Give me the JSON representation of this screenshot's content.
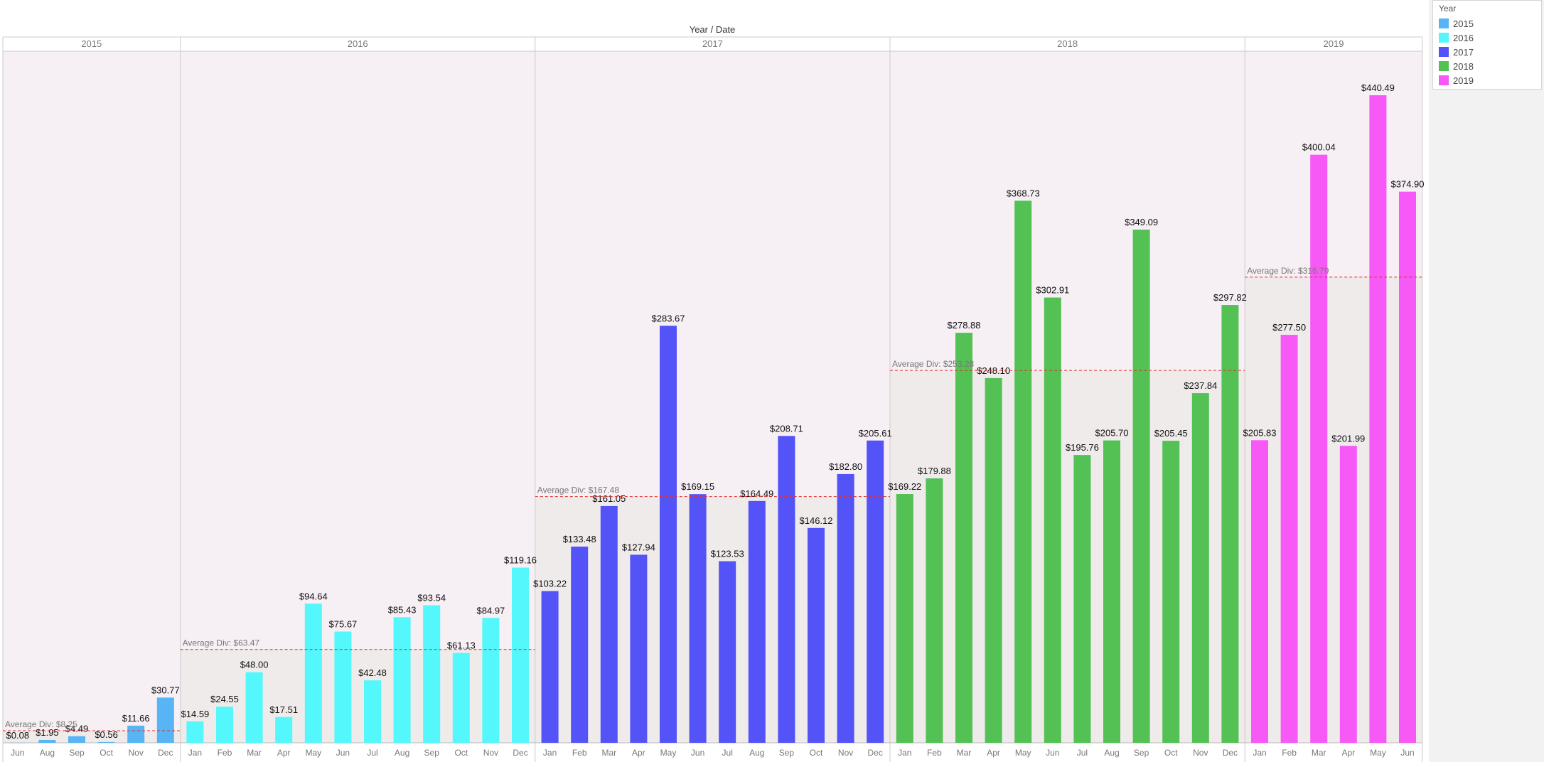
{
  "chart_data": {
    "type": "bar",
    "header_title": "Year / Date",
    "ylim": [
      0,
      460
    ],
    "grid": false,
    "legend": {
      "title": "Year",
      "placement": "top-right",
      "entries": [
        {
          "label": "2015",
          "color": "#57b5f5"
        },
        {
          "label": "2016",
          "color": "#54f7fb"
        },
        {
          "label": "2017",
          "color": "#5353f8"
        },
        {
          "label": "2018",
          "color": "#54c155"
        },
        {
          "label": "2019",
          "color": "#f659f6"
        }
      ]
    },
    "years": [
      {
        "year": "2015",
        "color": "#57b5f5",
        "avg_label": "Average Div: $8.25",
        "avg_value": 8.25,
        "months": [
          "Jun",
          "Aug",
          "Sep",
          "Oct",
          "Nov",
          "Dec"
        ],
        "values": [
          0.08,
          1.95,
          4.49,
          0.56,
          11.66,
          30.77
        ],
        "labels": [
          "$0.08",
          "$1.95",
          "$4.49",
          "$0.56",
          "$11.66",
          "$30.77"
        ]
      },
      {
        "year": "2016",
        "color": "#54f7fb",
        "avg_label": "Average Div: $63.47",
        "avg_value": 63.47,
        "months": [
          "Jan",
          "Feb",
          "Mar",
          "Apr",
          "May",
          "Jun",
          "Jul",
          "Aug",
          "Sep",
          "Oct",
          "Nov",
          "Dec"
        ],
        "values": [
          14.59,
          24.55,
          48.0,
          17.51,
          94.64,
          75.67,
          42.48,
          85.43,
          93.54,
          61.13,
          84.97,
          119.16
        ],
        "labels": [
          "$14.59",
          "$24.55",
          "$48.00",
          "$17.51",
          "$94.64",
          "$75.67",
          "$42.48",
          "$85.43",
          "$93.54",
          "$61.13",
          "$84.97",
          "$119.16"
        ]
      },
      {
        "year": "2017",
        "color": "#5353f8",
        "avg_label": "Average Div: $167.48",
        "avg_value": 167.48,
        "months": [
          "Jan",
          "Feb",
          "Mar",
          "Apr",
          "May",
          "Jun",
          "Jul",
          "Aug",
          "Sep",
          "Oct",
          "Nov",
          "Dec"
        ],
        "values": [
          103.22,
          133.48,
          161.05,
          127.94,
          283.67,
          169.15,
          123.53,
          164.49,
          208.71,
          146.12,
          182.8,
          205.61
        ],
        "labels": [
          "$103.22",
          "$133.48",
          "$161.05",
          "$127.94",
          "$283.67",
          "$169.15",
          "$123.53",
          "$164.49",
          "$208.71",
          "$146.12",
          "$182.80",
          "$205.61"
        ]
      },
      {
        "year": "2018",
        "color": "#54c155",
        "avg_label": "Average Div: $253.28",
        "avg_value": 253.28,
        "months": [
          "Jan",
          "Feb",
          "Mar",
          "Apr",
          "May",
          "Jun",
          "Jul",
          "Aug",
          "Sep",
          "Oct",
          "Nov",
          "Dec"
        ],
        "values": [
          169.22,
          179.88,
          278.88,
          248.1,
          368.73,
          302.91,
          195.76,
          205.7,
          349.09,
          205.45,
          237.84,
          297.82
        ],
        "labels": [
          "$169.22",
          "$179.88",
          "$278.88",
          "$248.10",
          "$368.73",
          "$302.91",
          "$195.76",
          "$205.70",
          "$349.09",
          "$205.45",
          "$237.84",
          "$297.82"
        ]
      },
      {
        "year": "2019",
        "color": "#f659f6",
        "avg_label": "Average Div: $316.79",
        "avg_value": 316.79,
        "months": [
          "Jan",
          "Feb",
          "Mar",
          "Apr",
          "May",
          "Jun"
        ],
        "values": [
          205.83,
          277.5,
          400.04,
          201.99,
          440.49,
          374.9
        ],
        "labels": [
          "$205.83",
          "$277.50",
          "$400.04",
          "$201.99",
          "$440.49",
          "$374.90"
        ]
      }
    ]
  },
  "colors": {
    "pane_background": "#f6eff4",
    "average_band": "#efebea",
    "average_line": "#e03030",
    "divider": "#cfc8cc"
  }
}
